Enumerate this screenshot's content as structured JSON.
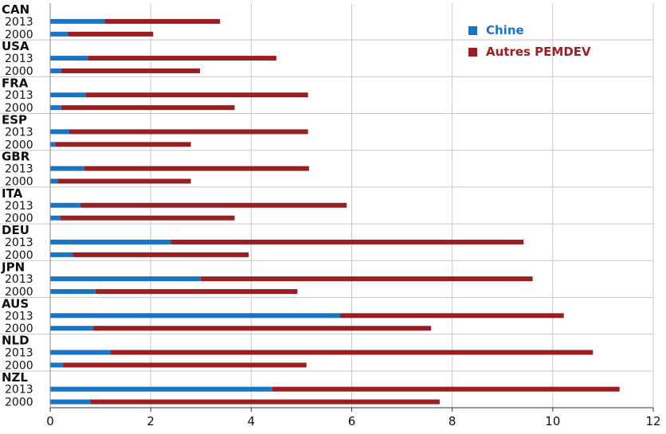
{
  "chart_data": {
    "type": "bar",
    "orientation": "horizontal",
    "stacked": true,
    "title": "",
    "xlabel": "",
    "ylabel": "",
    "xlim": [
      0,
      12
    ],
    "x_ticks": [
      "0",
      "2",
      "4",
      "6",
      "8",
      "10",
      "12"
    ],
    "grid": true,
    "legend_position": "top-right",
    "series": [
      {
        "name": "Chine",
        "color": "#1a74c4"
      },
      {
        "name": "Autres PEMDEV",
        "color": "#9b1f22"
      }
    ],
    "groups": [
      {
        "country": "CAN",
        "rows": [
          {
            "year": "2013",
            "chine": 1.08,
            "total": 3.38
          },
          {
            "year": "2000",
            "chine": 0.35,
            "total": 2.05
          }
        ]
      },
      {
        "country": "USA",
        "rows": [
          {
            "year": "2013",
            "chine": 0.75,
            "total": 4.5
          },
          {
            "year": "2000",
            "chine": 0.22,
            "total": 2.98
          }
        ]
      },
      {
        "country": "FRA",
        "rows": [
          {
            "year": "2013",
            "chine": 0.7,
            "total": 5.13
          },
          {
            "year": "2000",
            "chine": 0.22,
            "total": 3.67
          }
        ]
      },
      {
        "country": "ESP",
        "rows": [
          {
            "year": "2013",
            "chine": 0.38,
            "total": 5.13
          },
          {
            "year": "2000",
            "chine": 0.1,
            "total": 2.8
          }
        ]
      },
      {
        "country": "GBR",
        "rows": [
          {
            "year": "2013",
            "chine": 0.68,
            "total": 5.15
          },
          {
            "year": "2000",
            "chine": 0.15,
            "total": 2.8
          }
        ]
      },
      {
        "country": "ITA",
        "rows": [
          {
            "year": "2013",
            "chine": 0.6,
            "total": 5.9
          },
          {
            "year": "2000",
            "chine": 0.2,
            "total": 3.67
          }
        ]
      },
      {
        "country": "DEU",
        "rows": [
          {
            "year": "2013",
            "chine": 2.4,
            "total": 9.42
          },
          {
            "year": "2000",
            "chine": 0.45,
            "total": 3.95
          }
        ]
      },
      {
        "country": "JPN",
        "rows": [
          {
            "year": "2013",
            "chine": 3.0,
            "total": 9.6
          },
          {
            "year": "2000",
            "chine": 0.9,
            "total": 4.92
          }
        ]
      },
      {
        "country": "AUS",
        "rows": [
          {
            "year": "2013",
            "chine": 5.77,
            "total": 10.22
          },
          {
            "year": "2000",
            "chine": 0.85,
            "total": 7.58
          }
        ]
      },
      {
        "country": "NLD",
        "rows": [
          {
            "year": "2013",
            "chine": 1.2,
            "total": 10.8
          },
          {
            "year": "2000",
            "chine": 0.25,
            "total": 5.1
          }
        ]
      },
      {
        "country": "NZL",
        "rows": [
          {
            "year": "2013",
            "chine": 4.42,
            "total": 11.33
          },
          {
            "year": "2000",
            "chine": 0.8,
            "total": 7.75
          }
        ]
      }
    ]
  }
}
